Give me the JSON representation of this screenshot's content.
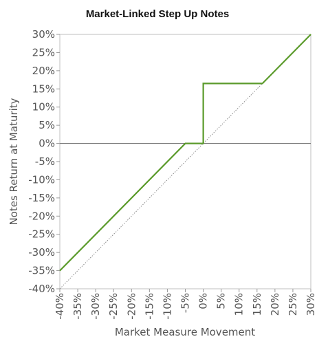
{
  "chart_data": {
    "type": "line",
    "title": "Market-Linked Step Up Notes",
    "xlabel": "Market Measure Movement",
    "ylabel": "Notes Return at Maturity",
    "xlim": [
      -40,
      30
    ],
    "ylim": [
      -40,
      30
    ],
    "x_ticks": [
      -40,
      -35,
      -30,
      -25,
      -20,
      -15,
      -10,
      -5,
      0,
      5,
      10,
      15,
      20,
      25,
      30
    ],
    "y_ticks": [
      30,
      25,
      20,
      15,
      10,
      5,
      0,
      -5,
      -10,
      -15,
      -20,
      -25,
      -30,
      -35,
      -40
    ],
    "x_tick_labels": [
      "-40%",
      "-35%",
      "-30%",
      "-25%",
      "-20%",
      "-15%",
      "-10%",
      "-5%",
      "0%",
      "5%",
      "10%",
      "15%",
      "20%",
      "25%",
      "30%"
    ],
    "y_tick_labels": [
      "30%",
      "25%",
      "20%",
      "15%",
      "10%",
      "5%",
      "0%",
      "-5%",
      "-10%",
      "-15%",
      "-20%",
      "-25%",
      "-30%",
      "-35%",
      "-40%"
    ],
    "series": [
      {
        "color": "#5a9a2a",
        "style": "solid",
        "x": [
          -40,
          -5,
          0,
          0,
          16.5,
          30
        ],
        "y": [
          -35,
          0,
          0,
          16.5,
          16.5,
          30
        ]
      },
      {
        "color": "#888888",
        "style": "dotted",
        "x": [
          -40,
          30
        ],
        "y": [
          -40,
          30
        ]
      }
    ],
    "zero_line": true,
    "grid": false,
    "legend": "none"
  }
}
